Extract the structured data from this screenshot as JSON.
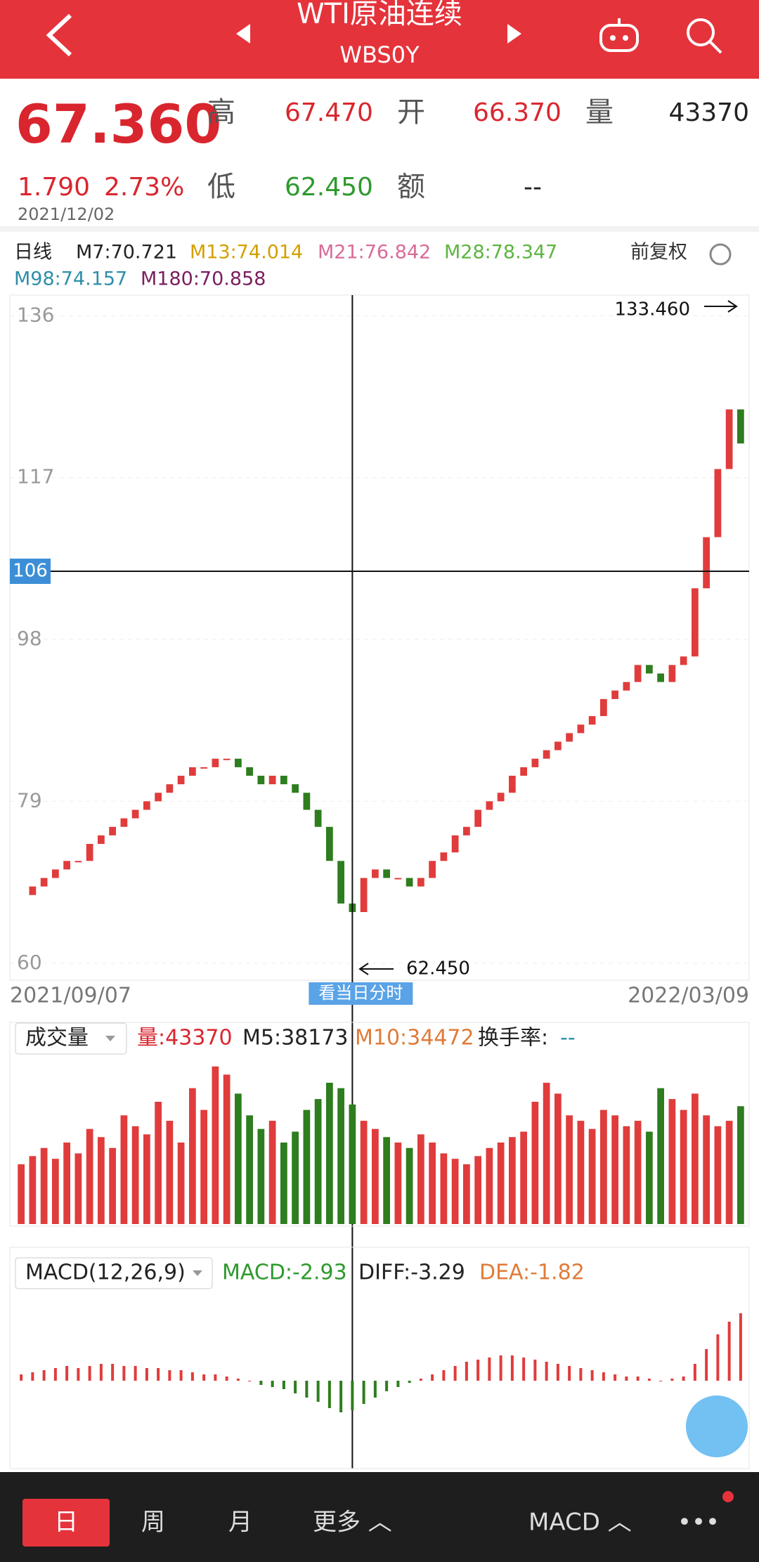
{
  "header": {
    "title": "WTI原油连续",
    "code": "WBS0Y"
  },
  "quote": {
    "price": "67.360",
    "change": "1.790",
    "change_pct": "2.73%",
    "date": "2021/12/02",
    "high_label": "高",
    "high": "67.470",
    "open_label": "开",
    "open": "66.370",
    "vol_label": "量",
    "vol": "43370",
    "low_label": "低",
    "low": "62.450",
    "amount_label": "额",
    "amount": "--"
  },
  "ma_legend": {
    "period": "日线",
    "m7": "M7:70.721",
    "m13": "M13:74.014",
    "m21": "M21:76.842",
    "m28": "M28:78.347",
    "m98": "M98:74.157",
    "m180": "M180:70.858",
    "adjust": "前复权"
  },
  "chart_data": {
    "type": "candlestick",
    "closes": [
      68,
      69,
      70,
      71,
      72,
      72,
      74,
      75,
      76,
      77,
      78,
      79,
      80,
      81,
      82,
      83,
      83,
      84,
      84,
      83,
      82,
      81,
      82,
      81,
      80,
      78,
      76,
      72,
      67,
      66,
      70,
      71,
      70,
      70,
      69,
      70,
      72,
      73,
      75,
      76,
      78,
      79,
      80,
      82,
      83,
      84,
      85,
      86,
      87,
      88,
      89,
      91,
      92,
      93,
      95,
      94,
      93,
      95,
      96,
      104,
      110,
      118,
      125,
      121
    ],
    "up_color": "#e03c3c",
    "down_color": "#2e7d1e",
    "ylim": [
      58,
      138
    ],
    "yticks": [
      136,
      117,
      98,
      79,
      60
    ],
    "x_start": "2021/09/07",
    "x_end": "2022/03/09",
    "crosshair": {
      "index": 29,
      "value": 106,
      "label": "106",
      "button": "看当日分时"
    },
    "max_note": "133.460",
    "min_note": "62.450"
  },
  "volume": {
    "menu": "成交量",
    "vol": "量:43370",
    "m5": "M5:38173",
    "m10": "M10:34472",
    "turnover_label": "换手率:",
    "turnover": "--",
    "ylim": [
      0,
      60000
    ],
    "values": [
      22000,
      25000,
      28000,
      24000,
      30000,
      26000,
      35000,
      32000,
      28000,
      40000,
      36000,
      33000,
      45000,
      38000,
      30000,
      50000,
      42000,
      58000,
      55000,
      48000,
      40000,
      35000,
      38000,
      30000,
      34000,
      42000,
      46000,
      52000,
      50000,
      44000,
      38000,
      35000,
      32000,
      30000,
      28000,
      33000,
      30000,
      26000,
      24000,
      22000,
      25000,
      28000,
      30000,
      32000,
      34000,
      45000,
      52000,
      48000,
      40000,
      38000,
      35000,
      42000,
      40000,
      36000,
      38000,
      34000,
      50000,
      46000,
      42000,
      48000,
      40000,
      36000,
      38000,
      43370
    ]
  },
  "macd": {
    "menu": "MACD(12,26,9)",
    "macd": "MACD:-2.93",
    "diff": "DIFF:-3.29",
    "dea": "DEA:-1.82",
    "ylim": [
      -4,
      4
    ],
    "values": [
      0.3,
      0.4,
      0.5,
      0.6,
      0.7,
      0.6,
      0.7,
      0.8,
      0.8,
      0.7,
      0.7,
      0.6,
      0.6,
      0.5,
      0.5,
      0.4,
      0.3,
      0.3,
      0.2,
      0.1,
      0,
      -0.2,
      -0.3,
      -0.4,
      -0.6,
      -0.8,
      -1.0,
      -1.3,
      -1.5,
      -1.4,
      -1.1,
      -0.8,
      -0.5,
      -0.3,
      -0.1,
      0.1,
      0.3,
      0.5,
      0.7,
      0.9,
      1.0,
      1.1,
      1.2,
      1.2,
      1.1,
      1.0,
      0.9,
      0.8,
      0.7,
      0.6,
      0.5,
      0.4,
      0.3,
      0.2,
      0.2,
      0.1,
      0,
      0.1,
      0.2,
      0.8,
      1.5,
      2.2,
      2.8,
      3.2
    ]
  },
  "nav": {
    "day": "日",
    "week": "周",
    "month": "月",
    "more": "更多 ︿",
    "indicator": "MACD ︿",
    "menu": "•••"
  }
}
